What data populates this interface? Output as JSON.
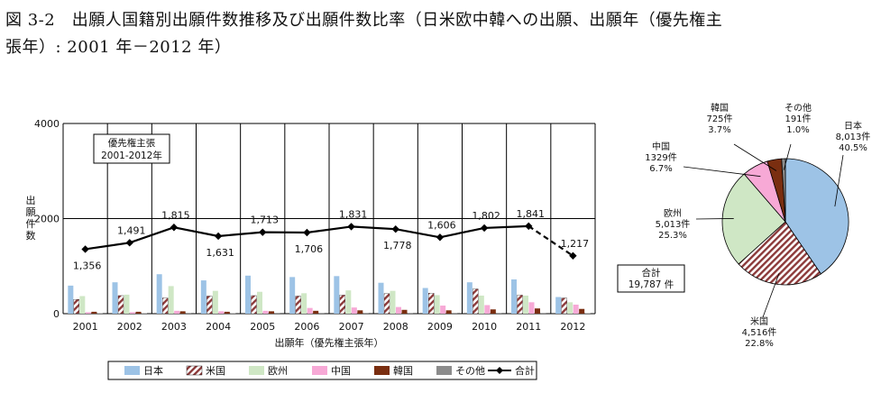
{
  "figure": {
    "title_line1": "図 3-2　出願人国籍別出願件数推移及び出願件数比率（日米欧中韓への出願、出願年（優先権主",
    "title_line2": "張年）: 2001 年－2012 年）"
  },
  "colors": {
    "japan": "#9dc3e6",
    "usa_stripe": "#8c3a3a",
    "usa_bg": "#ffffff",
    "europe": "#cfe7c5",
    "china": "#f7a9d6",
    "korea": "#7a2e10",
    "other": "#8c8c8c",
    "total_line": "#000000",
    "grid": "#000000"
  },
  "chart_data": [
    {
      "type": "bar",
      "subtype": "grouped bar with line overlay",
      "annotation_box": {
        "line1": "優先権主張",
        "line2": "2001-2012年"
      },
      "xlabel": "出願年（優先権主張年）",
      "ylabel": "出願件数",
      "ylabel_chars": [
        "出",
        "願",
        "件",
        "数"
      ],
      "ylim": [
        0,
        4000
      ],
      "yticks": [
        "0",
        "2000",
        "4000"
      ],
      "ytick_values": [
        0,
        2000,
        4000
      ],
      "grid": "horizontal at 2000",
      "legend_position": "bottom",
      "categories": [
        "2001",
        "2002",
        "2003",
        "2004",
        "2005",
        "2006",
        "2007",
        "2008",
        "2009",
        "2010",
        "2011",
        "2012"
      ],
      "series": [
        {
          "name": "日本",
          "key": "japan",
          "values": [
            590,
            660,
            830,
            700,
            800,
            770,
            790,
            650,
            540,
            660,
            720,
            350
          ]
        },
        {
          "name": "米国",
          "key": "usa",
          "values": [
            300,
            380,
            330,
            370,
            380,
            370,
            390,
            420,
            430,
            520,
            390,
            330
          ]
        },
        {
          "name": "欧州",
          "key": "europe",
          "values": [
            370,
            400,
            580,
            480,
            460,
            430,
            490,
            480,
            390,
            380,
            380,
            240
          ]
        },
        {
          "name": "中国",
          "key": "china",
          "values": [
            30,
            30,
            60,
            50,
            60,
            120,
            130,
            140,
            170,
            180,
            240,
            190
          ]
        },
        {
          "name": "韓国",
          "key": "korea",
          "values": [
            40,
            40,
            50,
            40,
            50,
            60,
            70,
            80,
            70,
            90,
            110,
            100
          ]
        },
        {
          "name": "その他",
          "key": "other",
          "values": [
            10,
            10,
            15,
            10,
            15,
            15,
            15,
            15,
            15,
            15,
            15,
            10
          ]
        }
      ],
      "line_series": {
        "name": "合計",
        "values": [
          1356,
          1491,
          1815,
          1631,
          1713,
          1706,
          1831,
          1778,
          1606,
          1802,
          1841,
          1217
        ],
        "labels": [
          "1,356",
          "1,491",
          "1,815",
          "1,631",
          "1,713",
          "1,706",
          "1,831",
          "1,778",
          "1,606",
          "1,802",
          "1,841",
          "1,217"
        ],
        "label_side": [
          "below",
          "above",
          "above",
          "below",
          "above",
          "below",
          "above",
          "below",
          "above",
          "above",
          "above",
          "above"
        ],
        "dashed_segments_from_index": 10
      },
      "legend_entries": [
        "日本",
        "米国",
        "欧州",
        "中国",
        "韓国",
        "その他",
        "合計"
      ]
    },
    {
      "type": "pie",
      "total_box": {
        "line1": "合計",
        "line2": "19,787 件"
      },
      "slices": [
        {
          "name": "日本",
          "key": "japan",
          "count": "8,013件",
          "value": 8013,
          "pct": "40.5%"
        },
        {
          "name": "米国",
          "key": "usa",
          "count": "4,516件",
          "value": 4516,
          "pct": "22.8%"
        },
        {
          "name": "欧州",
          "key": "europe",
          "count": "5,013件",
          "value": 5013,
          "pct": "25.3%"
        },
        {
          "name": "中国",
          "key": "china",
          "count": "1329件",
          "value": 1329,
          "pct": "6.7%"
        },
        {
          "name": "韓国",
          "key": "korea",
          "count": "725件",
          "value": 725,
          "pct": "3.7%"
        },
        {
          "name": "その他",
          "key": "other",
          "count": "191件",
          "value": 191,
          "pct": "1.0%"
        }
      ]
    }
  ]
}
